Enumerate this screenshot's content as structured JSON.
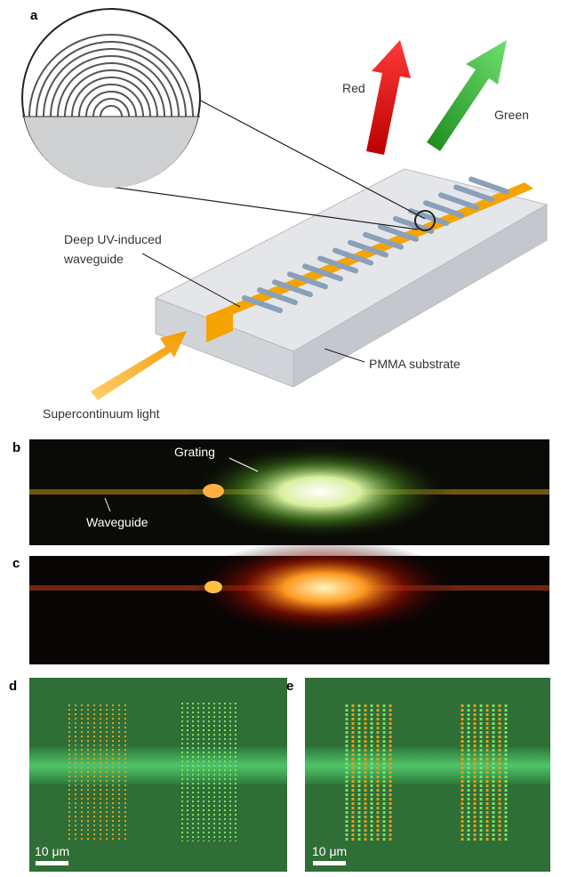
{
  "panel_a": {
    "label": "a",
    "red": "Red",
    "green": "Green",
    "waveguide": [
      "Deep UV-induced",
      "waveguide"
    ],
    "substrate": "PMMA substrate",
    "light": "Supercontinuum light"
  },
  "panel_b": {
    "label": "b",
    "grating": "Grating",
    "waveguide": "Waveguide"
  },
  "panel_c": {
    "label": "c"
  },
  "panel_d": {
    "label": "d",
    "scale_bar": "10 μm"
  },
  "panel_e": {
    "label": "e",
    "scale_bar": "10 μm"
  }
}
